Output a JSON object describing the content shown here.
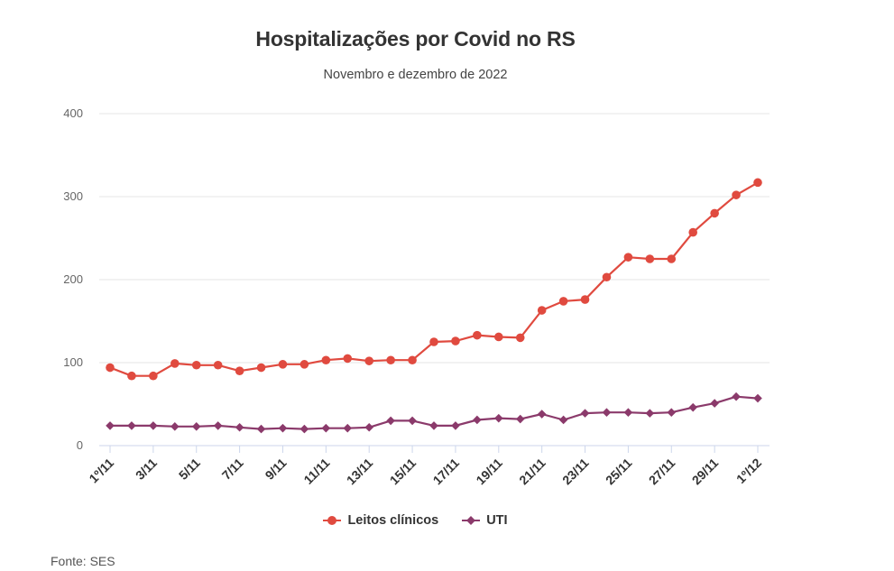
{
  "chart_data": {
    "type": "line",
    "title": "Hospitalizações por Covid no RS",
    "subtitle": "Novembro e dezembro de 2022",
    "source": "Fonte: SES",
    "xlabel": "",
    "ylabel": "",
    "ylim": [
      0,
      400
    ],
    "yticks": [
      "0",
      "100",
      "200",
      "300",
      "400"
    ],
    "grid": true,
    "legend_position": "bottom",
    "categories": [
      "1º/11",
      "2/11",
      "3/11",
      "4/11",
      "5/11",
      "6/11",
      "7/11",
      "8/11",
      "9/11",
      "10/11",
      "11/11",
      "12/11",
      "13/11",
      "14/11",
      "15/11",
      "16/11",
      "17/11",
      "18/11",
      "19/11",
      "20/11",
      "21/11",
      "22/11",
      "23/11",
      "24/11",
      "25/11",
      "26/11",
      "27/11",
      "28/11",
      "29/11",
      "30/11",
      "1º/12"
    ],
    "xtick_labels": [
      "1º/11",
      "3/11",
      "5/11",
      "7/11",
      "9/11",
      "11/11",
      "13/11",
      "15/11",
      "17/11",
      "19/11",
      "21/11",
      "23/11",
      "25/11",
      "27/11",
      "29/11",
      "1º/12"
    ],
    "series": [
      {
        "name": "Leitos clínicos",
        "color": "#e04a3f",
        "marker": "circle",
        "values": [
          94,
          84,
          84,
          99,
          97,
          97,
          90,
          94,
          98,
          98,
          103,
          105,
          102,
          103,
          103,
          125,
          126,
          133,
          131,
          130,
          163,
          174,
          176,
          203,
          227,
          225,
          225,
          257,
          280,
          302,
          317
        ]
      },
      {
        "name": "UTI",
        "color": "#8b3a6b",
        "marker": "diamond",
        "values": [
          24,
          24,
          24,
          23,
          23,
          24,
          22,
          20,
          21,
          20,
          21,
          21,
          22,
          30,
          30,
          24,
          24,
          31,
          33,
          32,
          38,
          31,
          39,
          40,
          40,
          39,
          40,
          46,
          51,
          59,
          57
        ]
      }
    ]
  }
}
